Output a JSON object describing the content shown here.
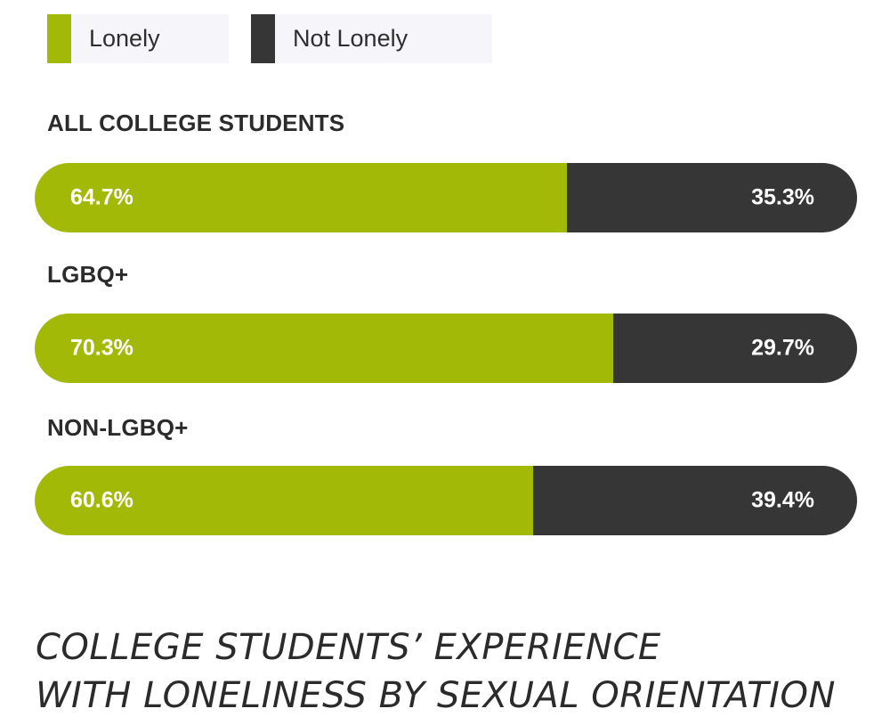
{
  "legend": [
    {
      "label": "Lonely",
      "color": "#a3b908"
    },
    {
      "label": "Not Lonely",
      "color": "#363636"
    }
  ],
  "chart_data": {
    "type": "bar",
    "orientation": "horizontal",
    "stacked": true,
    "unit": "%",
    "categories": [
      "ALL COLLEGE STUDENTS",
      "LGBQ+",
      "NON-LGBQ+"
    ],
    "series": [
      {
        "name": "Lonely",
        "values": [
          64.7,
          70.3,
          60.6
        ],
        "labels": [
          "64.7%",
          "70.3%",
          "60.6%"
        ],
        "color": "#a3b908"
      },
      {
        "name": "Not Lonely",
        "values": [
          35.3,
          29.7,
          39.4
        ],
        "labels": [
          "35.3%",
          "29.7%",
          "39.4%"
        ],
        "color": "#363636"
      }
    ],
    "xlim": [
      0,
      100
    ],
    "legend_position": "top-left",
    "grid": false,
    "title_lines": [
      "COLLEGE STUDENTS’ EXPERIENCE",
      "WITH LONELINESS BY SEXUAL ORIENTATION"
    ]
  }
}
